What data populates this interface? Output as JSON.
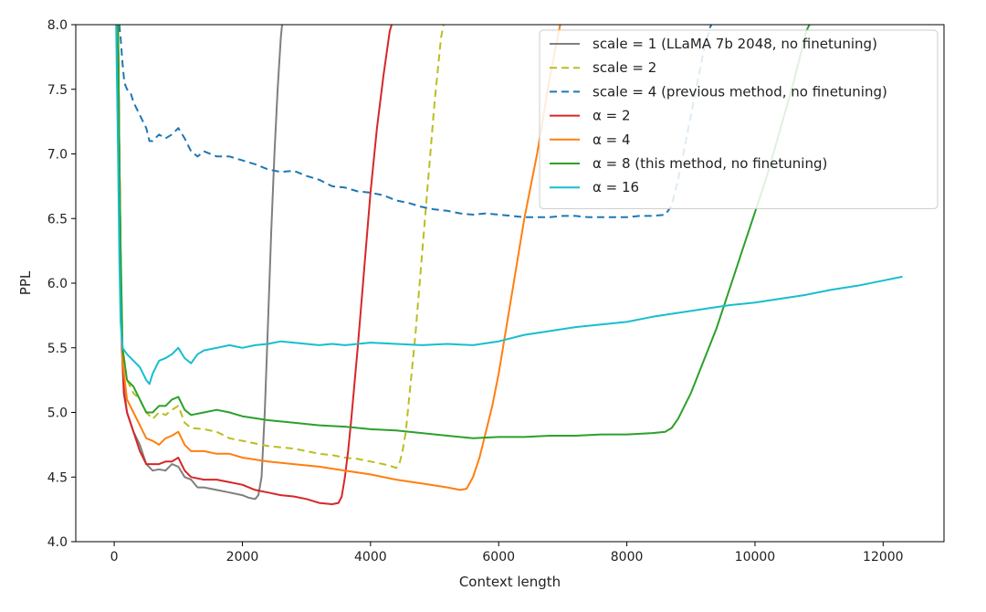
{
  "chart_data": {
    "type": "line",
    "title": "",
    "xlabel": "Context length",
    "ylabel": "PPL",
    "xlim": [
      -600,
      12950
    ],
    "ylim": [
      4.0,
      8.0
    ],
    "xticks": [
      0,
      2000,
      4000,
      6000,
      8000,
      10000,
      12000
    ],
    "xtick_labels": [
      "0",
      "2000",
      "4000",
      "6000",
      "8000",
      "10000",
      "12000"
    ],
    "yticks": [
      4.0,
      4.5,
      5.0,
      5.5,
      6.0,
      6.5,
      7.0,
      7.5,
      8.0
    ],
    "ytick_labels": [
      "4.0",
      "4.5",
      "5.0",
      "5.5",
      "6.0",
      "6.5",
      "7.0",
      "7.5",
      "8.0"
    ],
    "grid": false,
    "legend_position": "top-right",
    "series": [
      {
        "name": "scale = 1 (LLaMA 7b 2048, no finetuning)",
        "color": "#7f7f7f",
        "dash": "solid",
        "x": [
          60,
          80,
          100,
          120,
          150,
          200,
          300,
          400,
          500,
          600,
          700,
          800,
          900,
          1000,
          1100,
          1200,
          1300,
          1400,
          1600,
          1800,
          2000,
          2100,
          2200,
          2250,
          2300,
          2350,
          2400,
          2450,
          2500,
          2550,
          2600,
          2620
        ],
        "values": [
          8.0,
          7.0,
          6.2,
          5.5,
          5.2,
          5.0,
          4.85,
          4.75,
          4.6,
          4.55,
          4.56,
          4.55,
          4.6,
          4.58,
          4.5,
          4.48,
          4.42,
          4.42,
          4.4,
          4.38,
          4.36,
          4.34,
          4.33,
          4.36,
          4.5,
          5.0,
          5.7,
          6.4,
          7.0,
          7.5,
          7.9,
          8.0
        ]
      },
      {
        "name": "scale = 2",
        "color": "#bcbd22",
        "dash": "dashed",
        "x": [
          60,
          80,
          100,
          130,
          200,
          300,
          400,
          500,
          600,
          700,
          800,
          900,
          1000,
          1100,
          1200,
          1400,
          1600,
          1800,
          2000,
          2200,
          2400,
          2600,
          2800,
          3000,
          3200,
          3400,
          3600,
          3800,
          4000,
          4200,
          4350,
          4400,
          4450,
          4500,
          4550,
          4600,
          4700,
          4800,
          4900,
          5000,
          5100,
          5140
        ],
        "values": [
          8.0,
          7.0,
          6.2,
          5.5,
          5.25,
          5.15,
          5.1,
          5.0,
          4.95,
          5.0,
          4.98,
          5.02,
          5.05,
          4.92,
          4.88,
          4.87,
          4.85,
          4.8,
          4.78,
          4.76,
          4.74,
          4.73,
          4.72,
          4.7,
          4.68,
          4.67,
          4.65,
          4.64,
          4.62,
          4.6,
          4.58,
          4.57,
          4.6,
          4.7,
          4.85,
          5.1,
          5.6,
          6.2,
          6.8,
          7.4,
          7.9,
          8.0
        ]
      },
      {
        "name": "scale = 4 (previous method, no finetuning)",
        "color": "#1f77b4",
        "dash": "dashed",
        "x": [
          80,
          100,
          130,
          160,
          200,
          250,
          300,
          400,
          500,
          550,
          600,
          700,
          800,
          900,
          1000,
          1100,
          1200,
          1300,
          1400,
          1600,
          1800,
          2000,
          2200,
          2400,
          2600,
          2800,
          3000,
          3200,
          3400,
          3600,
          3800,
          4000,
          4200,
          4400,
          4600,
          4800,
          5000,
          5200,
          5400,
          5600,
          5800,
          6000,
          6200,
          6400,
          6600,
          6800,
          7000,
          7200,
          7400,
          7600,
          7800,
          8000,
          8200,
          8400,
          8600,
          8700,
          8800,
          8900,
          9000,
          9100,
          9200,
          9300,
          9320
        ],
        "values": [
          8.0,
          7.9,
          7.7,
          7.55,
          7.5,
          7.48,
          7.4,
          7.3,
          7.2,
          7.1,
          7.1,
          7.15,
          7.12,
          7.15,
          7.2,
          7.12,
          7.02,
          6.98,
          7.02,
          6.98,
          6.98,
          6.95,
          6.92,
          6.88,
          6.86,
          6.87,
          6.83,
          6.8,
          6.75,
          6.74,
          6.71,
          6.7,
          6.68,
          6.64,
          6.62,
          6.59,
          6.57,
          6.56,
          6.54,
          6.53,
          6.54,
          6.53,
          6.52,
          6.51,
          6.51,
          6.51,
          6.52,
          6.52,
          6.51,
          6.51,
          6.51,
          6.51,
          6.52,
          6.52,
          6.53,
          6.6,
          6.8,
          7.05,
          7.3,
          7.55,
          7.8,
          7.98,
          8.0
        ]
      },
      {
        "name": "α = 2",
        "color": "#d62728",
        "dash": "solid",
        "x": [
          60,
          80,
          100,
          120,
          150,
          200,
          300,
          400,
          500,
          600,
          700,
          800,
          900,
          1000,
          1100,
          1200,
          1400,
          1600,
          1800,
          2000,
          2200,
          2400,
          2600,
          2800,
          3000,
          3200,
          3400,
          3500,
          3550,
          3600,
          3650,
          3700,
          3800,
          3900,
          4000,
          4100,
          4200,
          4300,
          4330
        ],
        "values": [
          8.0,
          7.0,
          6.2,
          5.5,
          5.15,
          5.0,
          4.85,
          4.7,
          4.6,
          4.6,
          4.6,
          4.62,
          4.62,
          4.65,
          4.55,
          4.5,
          4.48,
          4.48,
          4.46,
          4.44,
          4.4,
          4.38,
          4.36,
          4.35,
          4.33,
          4.3,
          4.29,
          4.3,
          4.35,
          4.5,
          4.7,
          4.95,
          5.5,
          6.1,
          6.7,
          7.2,
          7.6,
          7.95,
          8.0
        ]
      },
      {
        "name": "α = 4",
        "color": "#ff7f0e",
        "dash": "solid",
        "x": [
          60,
          80,
          100,
          130,
          200,
          300,
          400,
          500,
          600,
          700,
          800,
          900,
          1000,
          1100,
          1200,
          1400,
          1600,
          1800,
          2000,
          2400,
          2800,
          3200,
          3600,
          4000,
          4400,
          4800,
          5200,
          5400,
          5500,
          5600,
          5700,
          5800,
          5900,
          6000,
          6200,
          6400,
          6600,
          6800,
          6900,
          6960
        ],
        "values": [
          8.0,
          7.0,
          6.2,
          5.4,
          5.1,
          5.0,
          4.9,
          4.8,
          4.78,
          4.75,
          4.8,
          4.82,
          4.85,
          4.75,
          4.7,
          4.7,
          4.68,
          4.68,
          4.65,
          4.62,
          4.6,
          4.58,
          4.55,
          4.52,
          4.48,
          4.45,
          4.42,
          4.4,
          4.41,
          4.5,
          4.65,
          4.85,
          5.05,
          5.3,
          5.9,
          6.5,
          7.0,
          7.6,
          7.85,
          8.0
        ]
      },
      {
        "name": "α = 8 (this method, no finetuning)",
        "color": "#2ca02c",
        "dash": "solid",
        "x": [
          60,
          80,
          100,
          130,
          200,
          300,
          400,
          500,
          600,
          700,
          800,
          900,
          1000,
          1100,
          1200,
          1400,
          1600,
          1800,
          2000,
          2400,
          2800,
          3200,
          3600,
          4000,
          4400,
          4800,
          5200,
          5600,
          6000,
          6400,
          6800,
          7200,
          7600,
          8000,
          8400,
          8600,
          8700,
          8800,
          9000,
          9200,
          9400,
          9600,
          9800,
          10000,
          10200,
          10400,
          10600,
          10800,
          10850
        ],
        "values": [
          8.0,
          7.0,
          6.3,
          5.5,
          5.25,
          5.2,
          5.1,
          5.0,
          5.0,
          5.05,
          5.05,
          5.1,
          5.12,
          5.02,
          4.98,
          5.0,
          5.02,
          5.0,
          4.97,
          4.94,
          4.92,
          4.9,
          4.89,
          4.87,
          4.86,
          4.84,
          4.82,
          4.8,
          4.81,
          4.81,
          4.82,
          4.82,
          4.83,
          4.83,
          4.84,
          4.85,
          4.88,
          4.95,
          5.15,
          5.4,
          5.65,
          5.95,
          6.25,
          6.55,
          6.85,
          7.2,
          7.55,
          7.95,
          8.0
        ]
      },
      {
        "name": "α = 16",
        "color": "#17becf",
        "dash": "solid",
        "x": [
          30,
          60,
          80,
          100,
          130,
          200,
          300,
          400,
          500,
          550,
          600,
          700,
          800,
          900,
          1000,
          1100,
          1200,
          1300,
          1400,
          1600,
          1800,
          2000,
          2200,
          2400,
          2600,
          2800,
          3000,
          3200,
          3400,
          3600,
          3800,
          4000,
          4400,
          4800,
          5200,
          5600,
          6000,
          6400,
          6800,
          7200,
          7600,
          8000,
          8400,
          8800,
          9200,
          9600,
          10000,
          10400,
          10800,
          11200,
          11600,
          12000,
          12300
        ],
        "values": [
          8.0,
          7.0,
          6.2,
          5.7,
          5.5,
          5.45,
          5.4,
          5.35,
          5.25,
          5.22,
          5.3,
          5.4,
          5.42,
          5.45,
          5.5,
          5.42,
          5.38,
          5.45,
          5.48,
          5.5,
          5.52,
          5.5,
          5.52,
          5.53,
          5.55,
          5.54,
          5.53,
          5.52,
          5.53,
          5.52,
          5.53,
          5.54,
          5.53,
          5.52,
          5.53,
          5.52,
          5.55,
          5.6,
          5.63,
          5.66,
          5.68,
          5.7,
          5.74,
          5.77,
          5.8,
          5.83,
          5.85,
          5.88,
          5.91,
          5.95,
          5.98,
          6.02,
          6.05
        ]
      }
    ]
  }
}
